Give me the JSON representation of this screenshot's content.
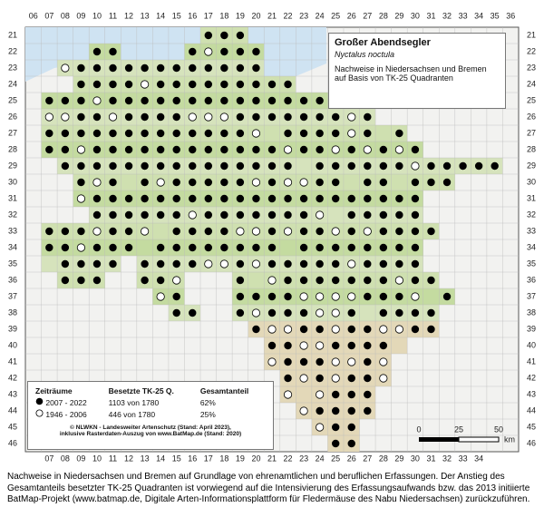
{
  "map": {
    "column_labels_top": [
      "06",
      "07",
      "08",
      "09",
      "10",
      "11",
      "12",
      "13",
      "14",
      "15",
      "16",
      "17",
      "18",
      "19",
      "20",
      "21",
      "22",
      "23",
      "24",
      "25",
      "26",
      "27",
      "28",
      "29",
      "30",
      "31",
      "32",
      "33",
      "34",
      "35",
      "36"
    ],
    "column_labels_bottom": [
      "07",
      "08",
      "09",
      "10",
      "11",
      "12",
      "13",
      "14",
      "15",
      "16",
      "17",
      "18",
      "19",
      "20",
      "21",
      "22",
      "23",
      "24",
      "25",
      "26",
      "27",
      "28",
      "29",
      "30",
      "31",
      "32",
      "33",
      "34"
    ],
    "row_labels": [
      "21",
      "22",
      "23",
      "24",
      "25",
      "26",
      "27",
      "28",
      "29",
      "30",
      "31",
      "32",
      "33",
      "34",
      "35",
      "36",
      "37",
      "38",
      "39",
      "40",
      "41",
      "42",
      "43",
      "44",
      "45",
      "46"
    ]
  },
  "title_box": {
    "title": "Großer Abendsegler",
    "species": "Nyctalus noctula",
    "description": "Nachweise in Niedersachsen und Bremen auf Basis von TK-25 Quadranten"
  },
  "legend": {
    "headers": [
      "Zeiträume",
      "Besetzte TK-25 Q.",
      "Gesamtanteil"
    ],
    "rows": [
      {
        "period": "2007 - 2022",
        "count": "1103 von 1780",
        "share": "62%"
      },
      {
        "period": "1946 - 2006",
        "count": "446 von 1780",
        "share": "25%"
      }
    ]
  },
  "credits": [
    "© NLWKN - Landesweiter Artenschutz (Stand: April 2023),",
    "inklusive Rasterdaten-Auszug von www.BatMap.de (Stand: 2020)"
  ],
  "scale": {
    "ticks": [
      0,
      25,
      50
    ],
    "unit": "km"
  },
  "caption": "Nachweise in Niedersachsen und Bremen auf Grundlage von ehrenamtlichen und beruflichen Erfassungen. Der Anstieg des Gesamtanteils besetzter TK-25 Quadranten ist vorwiegend auf die Intensivierung des Erfassungsaufwands bzw. das 2013 initiierte BatMap-Projekt (www.batmap.de, Digitale Arten-Informationsplattform für Fledermäuse des Nabu Niedersachsen) zurückzuführen."
}
